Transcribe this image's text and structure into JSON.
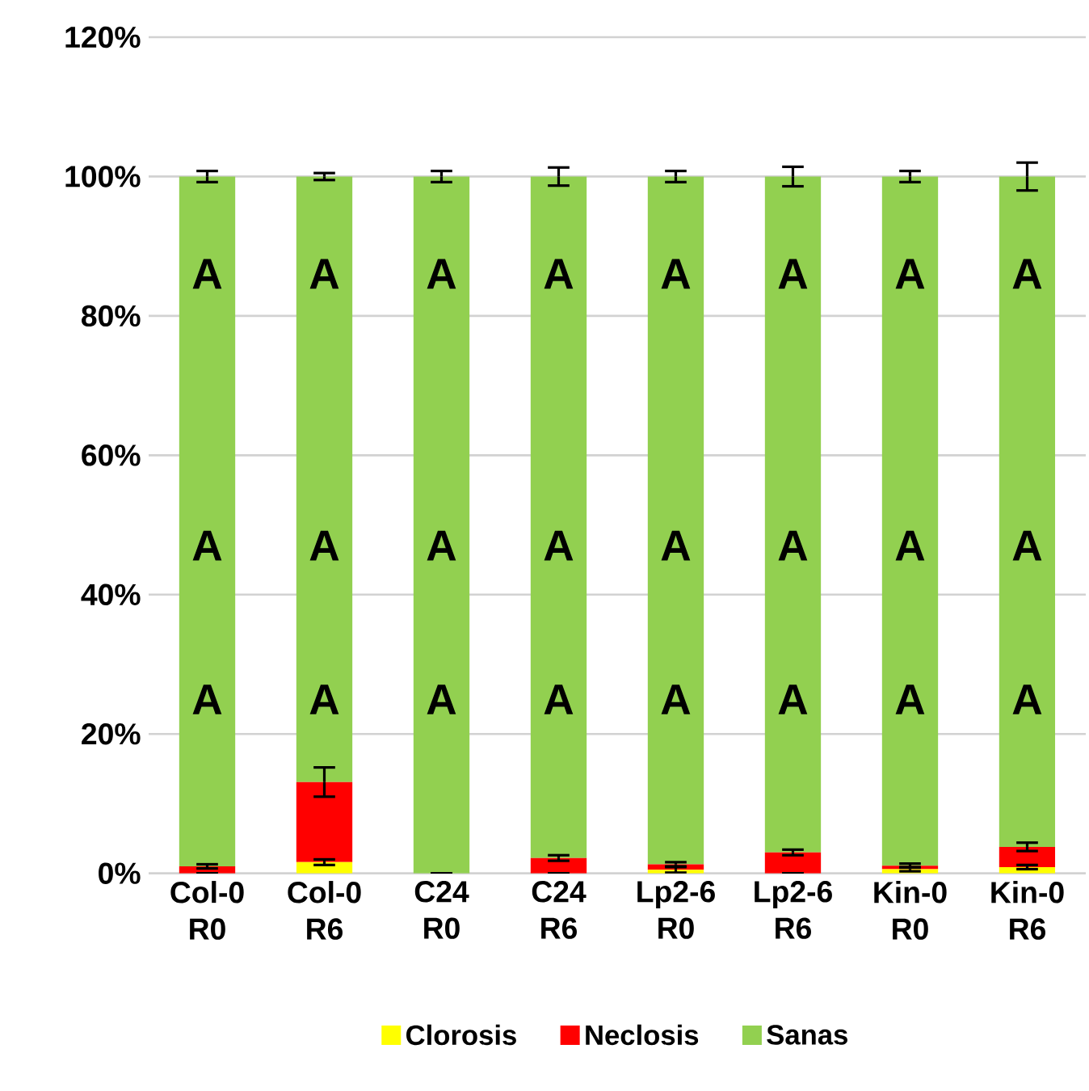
{
  "chart_data": {
    "type": "bar",
    "stacked": true,
    "categories": [
      "Col-0 R0",
      "Col-0 R6",
      "C24 R0",
      "C24 R6",
      "Lp2-6 R0",
      "Lp2-6 R6",
      "Kin-0 R0",
      "Kin-0 R6"
    ],
    "series": [
      {
        "name": "Clorosis",
        "color": "#ffff00",
        "values": [
          0,
          1.6,
          0,
          0,
          0.5,
          0,
          0.6,
          0.9
        ],
        "errors": [
          null,
          0.4,
          null,
          null,
          0.4,
          null,
          0.3,
          0.3
        ]
      },
      {
        "name": "Neclosis",
        "color": "#ff0000",
        "values": [
          1.0,
          11.5,
          0,
          2.2,
          0.8,
          3.0,
          0.5,
          2.9
        ],
        "errors": [
          0.3,
          2.1,
          null,
          0.4,
          0.3,
          0.4,
          0.3,
          0.6
        ]
      },
      {
        "name": "Sanas",
        "color": "#92d050",
        "values": [
          99.0,
          86.9,
          100,
          97.8,
          98.7,
          97.0,
          98.9,
          96.2
        ],
        "errors": [
          0.8,
          0.5,
          0.8,
          1.3,
          0.8,
          1.4,
          0.8,
          2.0
        ]
      }
    ],
    "ylim": [
      0,
      120
    ],
    "yticks": [
      {
        "value": 0,
        "label": "0%"
      },
      {
        "value": 20,
        "label": "20%"
      },
      {
        "value": 40,
        "label": "40%"
      },
      {
        "value": 60,
        "label": "60%"
      },
      {
        "value": 80,
        "label": "80%"
      },
      {
        "value": 100,
        "label": "100%"
      },
      {
        "value": 120,
        "label": "120%"
      }
    ],
    "grid": "y",
    "legend": "bottom",
    "annotations": [
      "A",
      "A",
      "A",
      "A",
      "A",
      "A",
      "A",
      "A",
      "A",
      "A",
      "A",
      "A",
      "A",
      "A",
      "A",
      "A",
      "A",
      "A",
      "A",
      "A",
      "A",
      "A",
      "A",
      "A"
    ]
  }
}
